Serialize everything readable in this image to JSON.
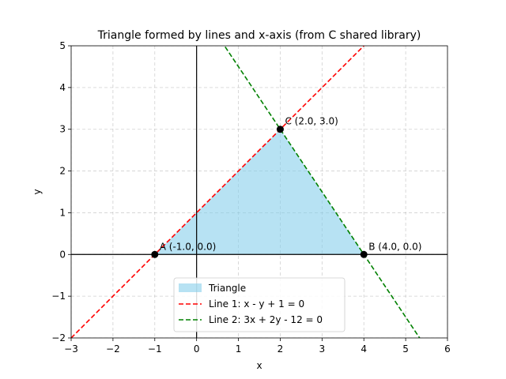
{
  "chart_data": {
    "type": "line",
    "title": "Triangle formed by lines and x-axis (from C shared library)",
    "xlabel": "x",
    "ylabel": "y",
    "xlim": [
      -3,
      6
    ],
    "ylim": [
      -2,
      5
    ],
    "xticks": [
      -3,
      -2,
      -1,
      0,
      1,
      2,
      3,
      4,
      5,
      6
    ],
    "yticks": [
      -2,
      -1,
      0,
      1,
      2,
      3,
      4,
      5
    ],
    "xtick_labels": [
      "−3",
      "−2",
      "−1",
      "0",
      "1",
      "2",
      "3",
      "4",
      "5",
      "6"
    ],
    "ytick_labels": [
      "−2",
      "−1",
      "0",
      "1",
      "2",
      "3",
      "4",
      "5"
    ],
    "grid": true,
    "legend_position": "bottom-center",
    "triangle": {
      "name": "Triangle",
      "vertices": [
        [
          -1,
          0
        ],
        [
          4,
          0
        ],
        [
          2,
          3
        ]
      ],
      "color": "#87ceeb"
    },
    "series": [
      {
        "name": "Line 1: x - y + 1 = 0",
        "style": "dashed",
        "color": "#ff0000",
        "x": [
          -3,
          6
        ],
        "y": [
          -2,
          7
        ]
      },
      {
        "name": "Line 2: 3x + 2y - 12 = 0",
        "style": "dashed",
        "color": "#008000",
        "x": [
          -3,
          6
        ],
        "y": [
          10.5,
          -3
        ]
      }
    ],
    "points": [
      {
        "label": "A (-1.0, 0.0)",
        "x": -1.0,
        "y": 0.0
      },
      {
        "label": "B (4.0, 0.0)",
        "x": 4.0,
        "y": 0.0
      },
      {
        "label": "C (2.0, 3.0)",
        "x": 2.0,
        "y": 3.0
      }
    ],
    "axis_lines": {
      "x0": true,
      "y0": true
    }
  }
}
